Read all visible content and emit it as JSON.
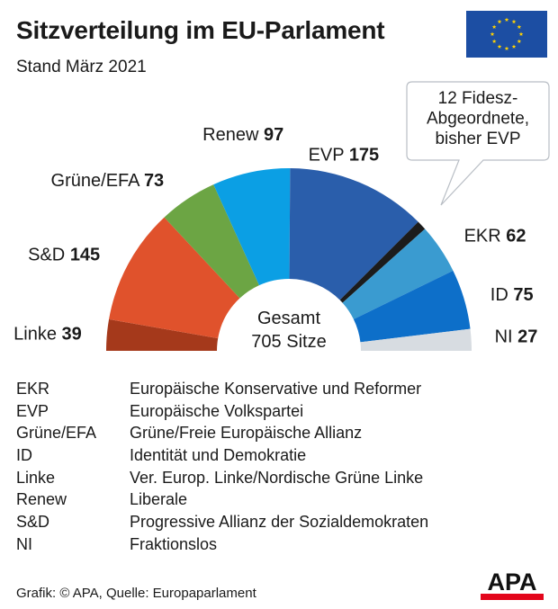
{
  "header": {
    "title": "Sitzverteilung im EU-Parlament",
    "subtitle": "Stand März 2021"
  },
  "chart_data": {
    "type": "pie",
    "variant": "parliament-semicircle",
    "title": "Sitzverteilung im EU-Parlament",
    "subtitle": "Stand März 2021",
    "center_label": [
      "Gesamt",
      "705 Sitze"
    ],
    "total": 705,
    "series": [
      {
        "name": "Linke",
        "value": 39,
        "color": "#a5391b"
      },
      {
        "name": "S&D",
        "value": 145,
        "color": "#e0522c"
      },
      {
        "name": "Grüne/EFA",
        "value": 73,
        "color": "#6ca544"
      },
      {
        "name": "Renew",
        "value": 97,
        "color": "#0b9fe4"
      },
      {
        "name": "EVP",
        "value": 175,
        "color": "#2a5eab"
      },
      {
        "name": "Fidesz (ehem. EVP)",
        "value": 12,
        "color": "#1c1c1c",
        "unlabeled": true
      },
      {
        "name": "EKR",
        "value": 62,
        "color": "#3a9bd0"
      },
      {
        "name": "ID",
        "value": 75,
        "color": "#0d6fc9"
      },
      {
        "name": "NI",
        "value": 27,
        "color": "#d7dce1"
      }
    ],
    "annotation": {
      "lines": [
        "12 Fidesz-",
        "Abgeordnete,",
        "bisher EVP"
      ],
      "target": "Fidesz (ehem. EVP)"
    }
  },
  "legend": [
    {
      "abbr": "EKR",
      "name": "Europäische Konservative und Reformer"
    },
    {
      "abbr": "EVP",
      "name": "Europäische Volkspartei"
    },
    {
      "abbr": "Grüne/EFA",
      "name": "Grüne/Freie Europäische Allianz"
    },
    {
      "abbr": "ID",
      "name": "Identität und Demokratie"
    },
    {
      "abbr": "Linke",
      "name": "Ver. Europ. Linke/Nordische Grüne Linke"
    },
    {
      "abbr": "Renew",
      "name": "Liberale"
    },
    {
      "abbr": "S&D",
      "name": "Progressive Allianz der Sozialdemokraten"
    },
    {
      "abbr": "NI",
      "name": "Fraktionslos"
    }
  ],
  "footer": {
    "credit": "Grafik: © APA, Quelle: Europaparlament",
    "logo_text": "APA"
  },
  "colors": {
    "flag_blue": "#1c4ea3",
    "flag_star": "#ffd200",
    "apa_red": "#e3051b",
    "text": "#1a1a1a"
  }
}
